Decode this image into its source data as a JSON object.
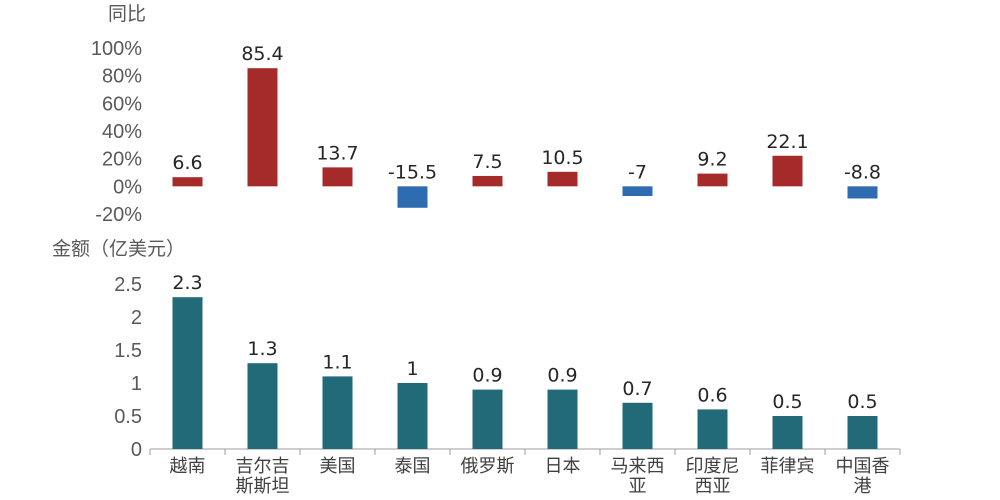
{
  "chart_data": [
    {
      "type": "bar",
      "ylabel": "同比",
      "ylim": [
        -20,
        100
      ],
      "yticks": [
        "100%",
        "80%",
        "60%",
        "40%",
        "20%",
        "0%",
        "-20%"
      ],
      "ytick_values": [
        100,
        80,
        60,
        40,
        20,
        0,
        -20
      ],
      "categories": [
        "越南",
        "吉尔吉斯斯坦",
        "美国",
        "泰国",
        "俄罗斯",
        "日本",
        "马来西亚",
        "印度尼西亚",
        "菲律宾",
        "中国香港"
      ],
      "values": [
        6.6,
        85.4,
        13.7,
        -15.5,
        7.5,
        10.5,
        -7,
        9.2,
        22.1,
        -8.8
      ],
      "value_labels": [
        "6.6",
        "85.4",
        "13.7",
        "-15.5",
        "7.5",
        "10.5",
        "-7",
        "9.2",
        "22.1",
        "-8.8"
      ],
      "positive_color": "#a52a2a",
      "negative_color": "#2e6bb0",
      "grid": false
    },
    {
      "type": "bar",
      "ylabel": "金额（亿美元）",
      "ylim": [
        0,
        2.5
      ],
      "yticks": [
        "2.5",
        "2",
        "1.5",
        "1",
        "0.5",
        "0"
      ],
      "ytick_values": [
        2.5,
        2,
        1.5,
        1,
        0.5,
        0
      ],
      "categories": [
        "越南",
        "吉尔吉斯斯坦",
        "美国",
        "泰国",
        "俄罗斯",
        "日本",
        "马来西亚",
        "印度尼西亚",
        "菲律宾",
        "中国香港"
      ],
      "category_lines": [
        [
          "越南"
        ],
        [
          "吉尔吉",
          "斯斯坦"
        ],
        [
          "美国"
        ],
        [
          "泰国"
        ],
        [
          "俄罗斯"
        ],
        [
          "日本"
        ],
        [
          "马来西",
          "亚"
        ],
        [
          "印度尼",
          "西亚"
        ],
        [
          "菲律宾"
        ],
        [
          "中国香",
          "港"
        ]
      ],
      "values": [
        2.3,
        1.3,
        1.1,
        1,
        0.9,
        0.9,
        0.7,
        0.6,
        0.5,
        0.5
      ],
      "value_labels": [
        "2.3",
        "1.3",
        "1.1",
        "1",
        "0.9",
        "0.9",
        "0.7",
        "0.6",
        "0.5",
        "0.5"
      ],
      "bar_color": "#236a78",
      "axis_color": "#9e9e9e",
      "grid": false
    }
  ]
}
